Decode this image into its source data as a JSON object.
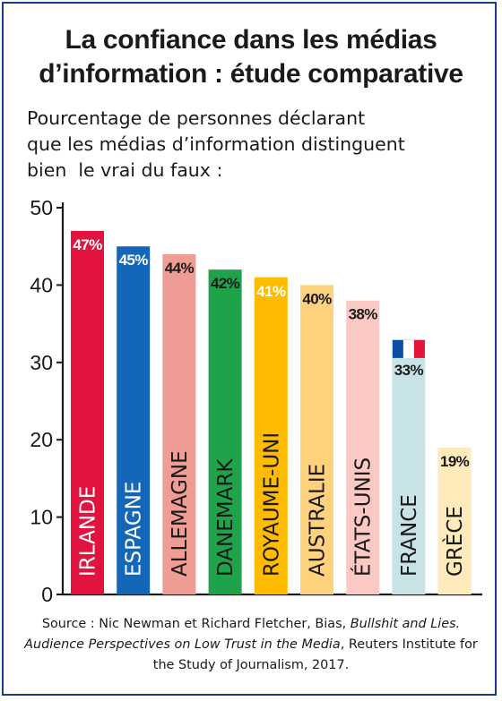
{
  "title_line1": "La confiance dans les médias",
  "title_line2": "d’information : étude comparative",
  "subtitle_line1": "Pourcentage de personnes déclarant",
  "subtitle_line2": "que les médias d’information distinguent",
  "subtitle_line3": "bien  le vrai du faux :",
  "source": {
    "prefix": "Source : Nic Newman et Richard Fletcher, Bias, ",
    "italic": "Bullshit and Lies. Audience Perspectives on Low Trust in the Media",
    "suffix": ", Reuters Institute for the Study of Journalism, 2017."
  },
  "chart_data": {
    "type": "bar",
    "categories": [
      "IRLANDE",
      "ESPAGNE",
      "ALLEMAGNE",
      "DANEMARK",
      "ROYAUME-UNI",
      "AUSTRALIE",
      "ÉTATS-UNIS",
      "FRANCE",
      "GRÈCE"
    ],
    "values": [
      47,
      45,
      44,
      42,
      41,
      40,
      38,
      33,
      19
    ],
    "value_labels": [
      "47%",
      "45%",
      "44%",
      "42%",
      "41%",
      "40%",
      "38%",
      "33%",
      "19%"
    ],
    "colors": [
      "#e2133f",
      "#1466b8",
      "#ef9c94",
      "#1ea34a",
      "#ffbb00",
      "#fed27c",
      "#fac9c4",
      "#c8e3e6",
      "#feeabb"
    ],
    "value_label_colors": [
      "#ffffff",
      "#ffffff",
      "#1a1a1a",
      "#1a1a1a",
      "#ffffff",
      "#1a1a1a",
      "#1a1a1a",
      "#1a1a1a",
      "#1a1a1a"
    ],
    "category_label_colors": [
      "#ffffff",
      "#ffffff",
      "#1a1a1a",
      "#1a1a1a",
      "#1a1a1a",
      "#1a1a1a",
      "#1a1a1a",
      "#1a1a1a",
      "#1a1a1a"
    ],
    "flag_on": "FRANCE",
    "ylim": [
      0,
      50
    ],
    "yticks": [
      0,
      10,
      20,
      30,
      40,
      50
    ],
    "grid": false
  },
  "colors": {
    "frame": "#1a3a8c",
    "text": "#1a1a1a",
    "flag_blue": "#0b4ea2",
    "flag_white": "#ffffff",
    "flag_red": "#e2133f"
  }
}
